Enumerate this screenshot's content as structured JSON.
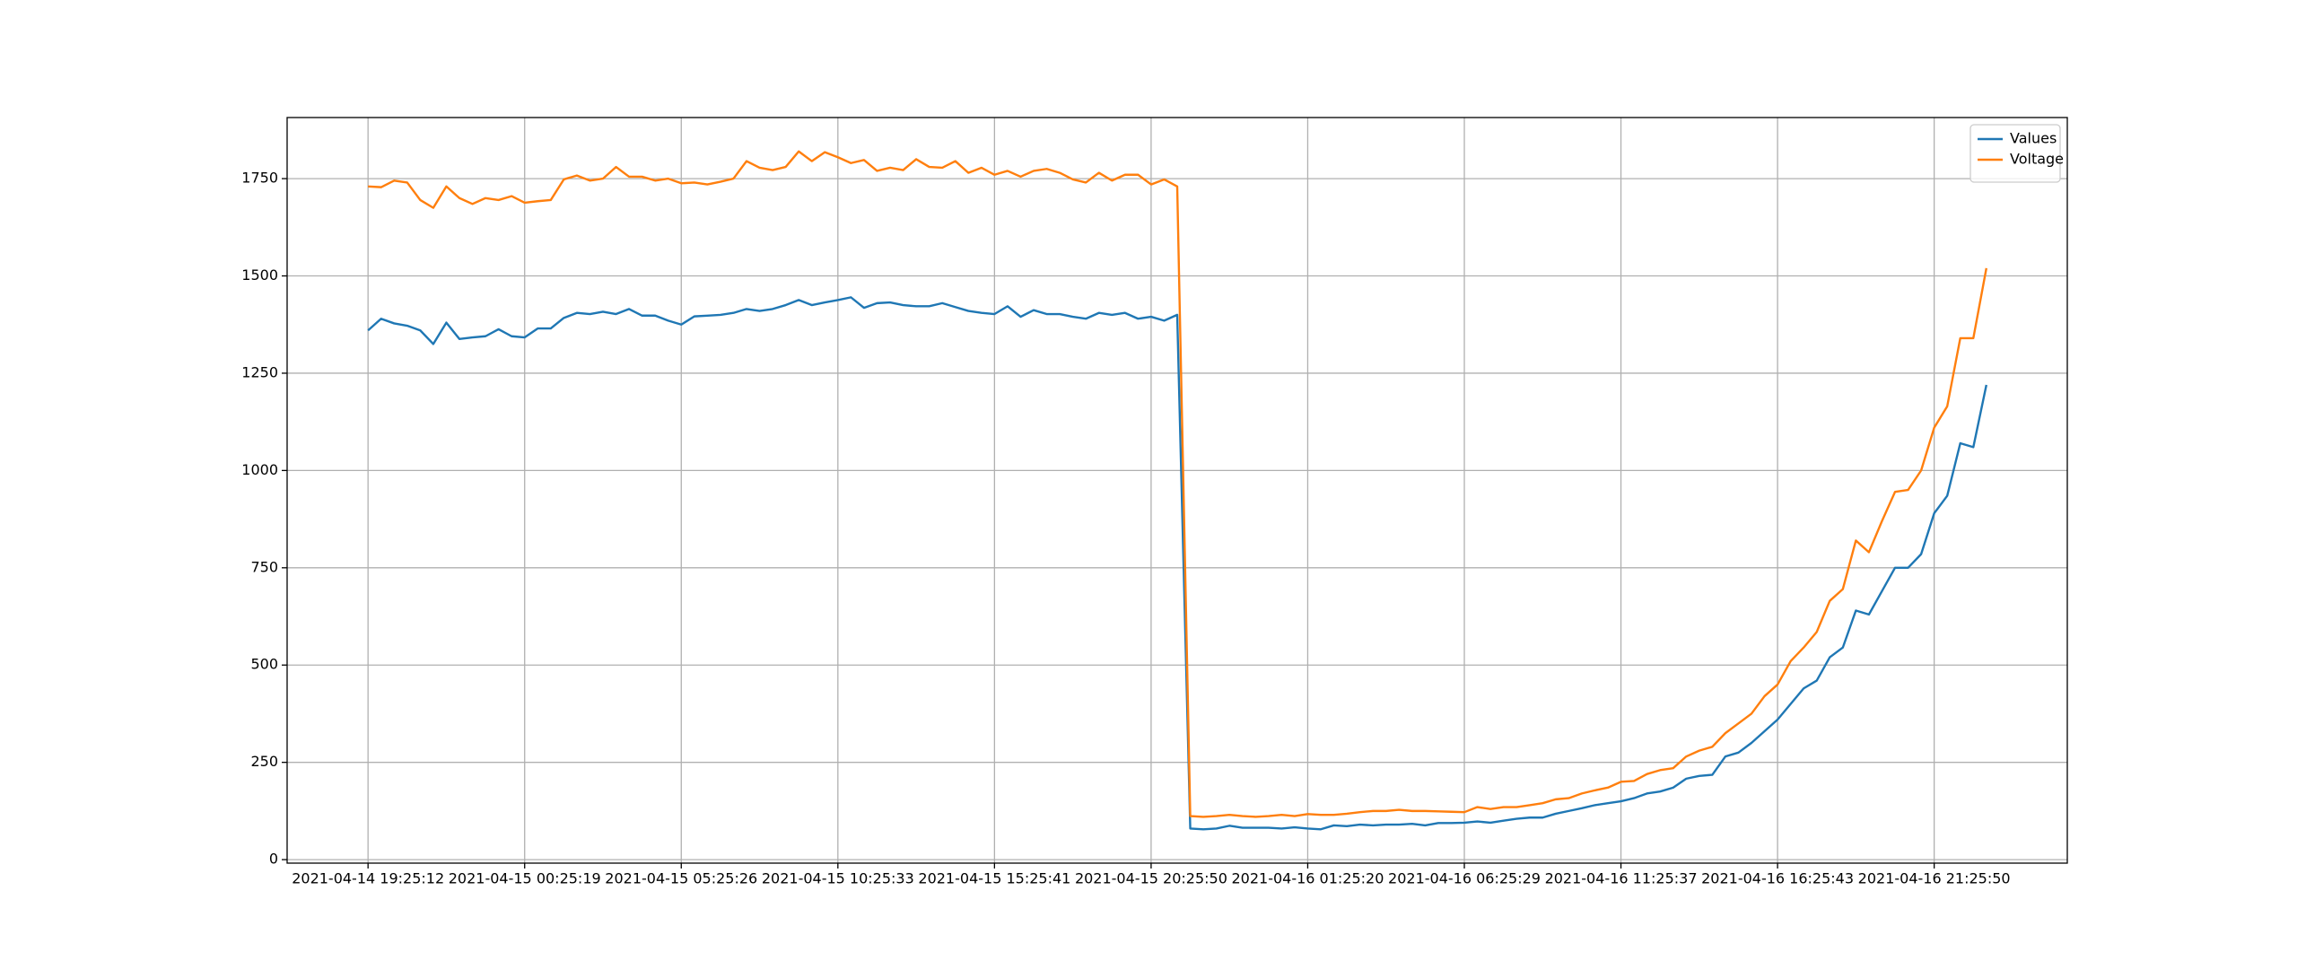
{
  "chart_data": {
    "type": "line",
    "categories": [
      "2021-04-14 19:25:12",
      null,
      null,
      null,
      null,
      null,
      null,
      null,
      null,
      null,
      null,
      null,
      "2021-04-15 00:25:19",
      null,
      null,
      null,
      null,
      null,
      null,
      null,
      null,
      null,
      null,
      null,
      "2021-04-15 05:25:26",
      null,
      null,
      null,
      null,
      null,
      null,
      null,
      null,
      null,
      null,
      null,
      "2021-04-15 10:25:33",
      null,
      null,
      null,
      null,
      null,
      null,
      null,
      null,
      null,
      null,
      null,
      "2021-04-15 15:25:41",
      null,
      null,
      null,
      null,
      null,
      null,
      null,
      null,
      null,
      null,
      null,
      "2021-04-15 20:25:50",
      null,
      null,
      null,
      null,
      null,
      null,
      null,
      null,
      null,
      null,
      null,
      "2021-04-16 01:25:20",
      null,
      null,
      null,
      null,
      null,
      null,
      null,
      null,
      null,
      null,
      null,
      "2021-04-16 06:25:29",
      null,
      null,
      null,
      null,
      null,
      null,
      null,
      null,
      null,
      null,
      null,
      "2021-04-16 11:25:37",
      null,
      null,
      null,
      null,
      null,
      null,
      null,
      null,
      null,
      null,
      null,
      "2021-04-16 16:25:43",
      null,
      null,
      null,
      null,
      null,
      null,
      null,
      null,
      null,
      null,
      null,
      "2021-04-16 21:25:50",
      null,
      null,
      null,
      null
    ],
    "series": [
      {
        "name": "Values",
        "color": "#1f77b4",
        "values": [
          1360,
          1390,
          1378,
          1372,
          1360,
          1325,
          1380,
          1338,
          1342,
          1345,
          1363,
          1345,
          1342,
          1365,
          1365,
          1392,
          1405,
          1402,
          1408,
          1402,
          1415,
          1398,
          1398,
          1385,
          1375,
          1396,
          1398,
          1400,
          1405,
          1415,
          1410,
          1415,
          1425,
          1438,
          1425,
          1432,
          1438,
          1445,
          1418,
          1430,
          1432,
          1425,
          1422,
          1422,
          1430,
          1420,
          1410,
          1405,
          1402,
          1422,
          1395,
          1412,
          1402,
          1402,
          1395,
          1390,
          1405,
          1400,
          1405,
          1390,
          1395,
          1385,
          1400,
          80,
          78,
          80,
          87,
          82,
          82,
          82,
          80,
          83,
          80,
          78,
          88,
          86,
          90,
          88,
          90,
          90,
          92,
          88,
          94,
          94,
          95,
          98,
          95,
          100,
          105,
          108,
          108,
          118,
          125,
          132,
          140,
          145,
          150,
          158,
          170,
          175,
          185,
          208,
          215,
          218,
          265,
          275,
          300,
          330,
          360,
          400,
          440,
          460,
          520,
          545,
          640,
          630,
          690,
          750,
          750,
          785,
          890,
          935,
          1070,
          1060,
          1220
        ]
      },
      {
        "name": "Voltage",
        "color": "#ff7f0e",
        "values": [
          1730,
          1728,
          1745,
          1740,
          1695,
          1675,
          1730,
          1700,
          1685,
          1700,
          1695,
          1705,
          1688,
          1692,
          1695,
          1748,
          1758,
          1745,
          1750,
          1780,
          1755,
          1755,
          1745,
          1750,
          1738,
          1740,
          1735,
          1742,
          1750,
          1795,
          1778,
          1772,
          1780,
          1820,
          1795,
          1818,
          1805,
          1790,
          1798,
          1770,
          1778,
          1772,
          1800,
          1780,
          1778,
          1795,
          1765,
          1778,
          1760,
          1770,
          1755,
          1770,
          1775,
          1765,
          1748,
          1740,
          1765,
          1745,
          1760,
          1760,
          1735,
          1748,
          1730,
          112,
          110,
          112,
          115,
          112,
          110,
          112,
          115,
          112,
          117,
          115,
          115,
          118,
          122,
          125,
          125,
          128,
          125,
          125,
          124,
          123,
          122,
          135,
          130,
          135,
          135,
          140,
          145,
          155,
          158,
          170,
          178,
          185,
          200,
          202,
          220,
          230,
          235,
          265,
          280,
          290,
          325,
          350,
          375,
          420,
          450,
          510,
          545,
          585,
          665,
          695,
          820,
          790,
          870,
          945,
          950,
          1000,
          1110,
          1165,
          1340,
          1340,
          1520
        ]
      }
    ],
    "ylim": [
      -9,
      1907
    ],
    "yticks": [
      0,
      250,
      500,
      750,
      1000,
      1250,
      1500,
      1750
    ],
    "grid": true,
    "legend": "upper right"
  }
}
